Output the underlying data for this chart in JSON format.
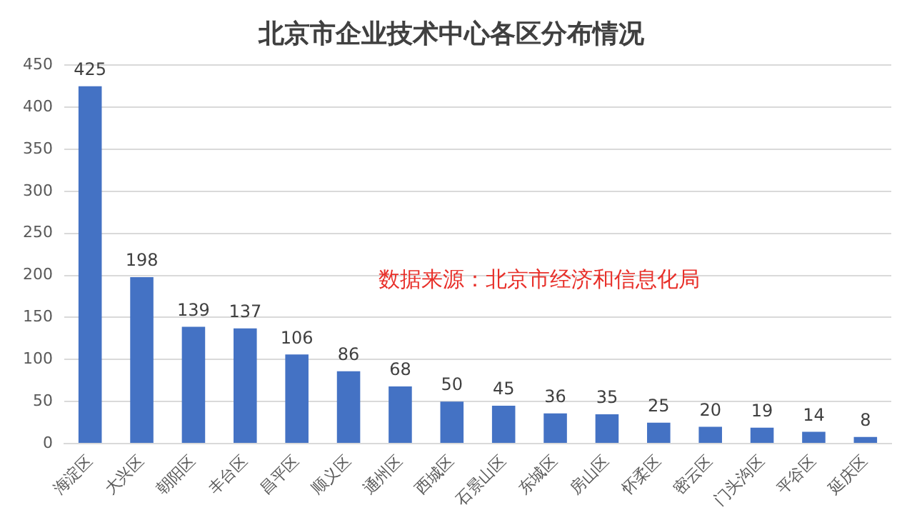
{
  "chart_data": {
    "type": "bar",
    "title": "北京市企业技术中心各区分布情况",
    "categories": [
      "海淀区",
      "大兴区",
      "朝阳区",
      "丰台区",
      "昌平区",
      "顺义区",
      "通州区",
      "西城区",
      "石景山区",
      "东城区",
      "房山区",
      "怀柔区",
      "密云区",
      "门头沟区",
      "平谷区",
      "延庆区"
    ],
    "values": [
      425,
      198,
      139,
      137,
      106,
      86,
      68,
      50,
      45,
      36,
      35,
      25,
      20,
      19,
      14,
      8
    ],
    "color": "#4472c4",
    "ylim": [
      0,
      450
    ],
    "yticks": [
      0,
      50,
      100,
      150,
      200,
      250,
      300,
      350,
      400,
      450
    ],
    "grid": "y",
    "data_labels": true,
    "annotations": [
      "数据来源：北京市经济和信息化局"
    ]
  }
}
